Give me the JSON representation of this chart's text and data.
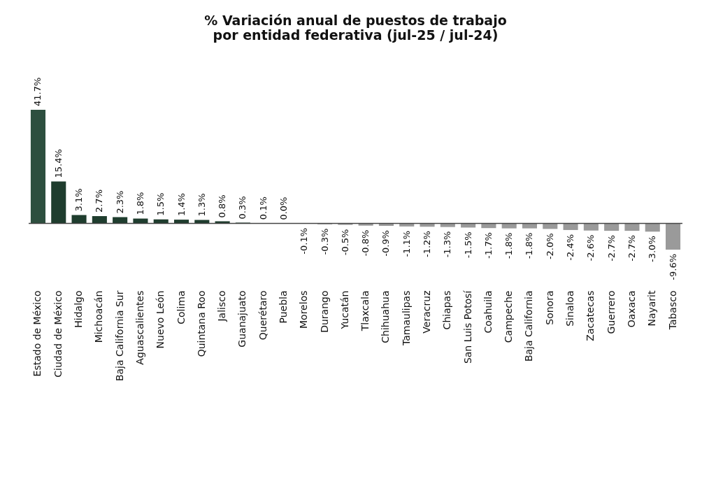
{
  "chart_data": {
    "type": "bar",
    "title": [
      "% Variación anual de puestos de trabajo",
      "por entidad federativa (jul-25 / jul-24)"
    ],
    "categories": [
      "Estado de México",
      "Ciudad de México",
      "Hidalgo",
      "Michoacán",
      "Baja California Sur",
      "Aguascalientes",
      "Nuevo León",
      "Colima",
      "Quintana Roo",
      "Jalisco",
      "Guanajuato",
      "Querétaro",
      "Puebla",
      "Morelos",
      "Durango",
      "Yucatán",
      "Tlaxcala",
      "Chihuahua",
      "Tamaulipas",
      "Veracruz",
      "Chiapas",
      "San Luis Potosí",
      "Coahuila",
      "Campeche",
      "Baja California",
      "Sonora",
      "Sinaloa",
      "Zacatecas",
      "Guerrero",
      "Oaxaca",
      "Nayarit",
      "Tabasco"
    ],
    "values": [
      41.7,
      15.4,
      3.1,
      2.7,
      2.3,
      1.8,
      1.5,
      1.4,
      1.3,
      0.8,
      0.3,
      0.1,
      0.0,
      -0.1,
      -0.3,
      -0.5,
      -0.8,
      -0.9,
      -1.1,
      -1.2,
      -1.3,
      -1.5,
      -1.7,
      -1.8,
      -1.8,
      -2.0,
      -2.4,
      -2.6,
      -2.7,
      -2.7,
      -3.0,
      -9.6
    ],
    "value_labels": [
      "41.7%",
      "15.4%",
      "3.1%",
      "2.7%",
      "2.3%",
      "1.8%",
      "1.5%",
      "1.4%",
      "1.3%",
      "0.8%",
      "0.3%",
      "0.1%",
      "0.0%",
      "-0.1%",
      "-0.3%",
      "-0.5%",
      "-0.8%",
      "-0.9%",
      "-1.1%",
      "-1.2%",
      "-1.3%",
      "-1.5%",
      "-1.7%",
      "-1.8%",
      "-1.8%",
      "-2.0%",
      "-2.4%",
      "-2.6%",
      "-2.7%",
      "-2.7%",
      "-3.0%",
      "-9.6%"
    ],
    "colors": [
      "#2d4f3f",
      "#1f3d2e",
      "#1f3d2e",
      "#1f3d2e",
      "#1f3d2e",
      "#1f3d2e",
      "#1f3d2e",
      "#1f3d2e",
      "#1f3d2e",
      "#1f3d2e",
      "#1f3d2e",
      "#1f3d2e",
      "#1f3d2e",
      "#9a9a9a",
      "#9a9a9a",
      "#9a9a9a",
      "#9a9a9a",
      "#9a9a9a",
      "#9a9a9a",
      "#9a9a9a",
      "#9a9a9a",
      "#9a9a9a",
      "#9a9a9a",
      "#9a9a9a",
      "#9a9a9a",
      "#9a9a9a",
      "#9a9a9a",
      "#9a9a9a",
      "#9a9a9a",
      "#9a9a9a",
      "#9a9a9a",
      "#9a9a9a"
    ]
  }
}
